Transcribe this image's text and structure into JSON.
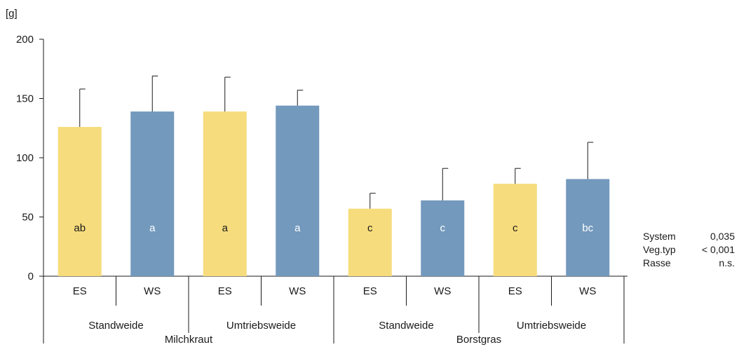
{
  "chart_data": {
    "type": "bar",
    "ylabel": "[g]",
    "ylim": [
      0,
      200
    ],
    "yticks": [
      0,
      50,
      100,
      150,
      200
    ],
    "colors": {
      "ES": "#f6dc7c",
      "WS": "#7399bd",
      "axis": "#1a1a1a"
    },
    "bars": [
      {
        "cat": "ES",
        "system": "Standweide",
        "vegtyp": "Milchkraut",
        "value": 126,
        "err_upper": 158,
        "sig": "ab",
        "sig_color": "#1a1a1a"
      },
      {
        "cat": "WS",
        "system": "Standweide",
        "vegtyp": "Milchkraut",
        "value": 139,
        "err_upper": 169,
        "sig": "a",
        "sig_color": "#ffffff"
      },
      {
        "cat": "ES",
        "system": "Umtriebsweide",
        "vegtyp": "Milchkraut",
        "value": 139,
        "err_upper": 168,
        "sig": "a",
        "sig_color": "#1a1a1a"
      },
      {
        "cat": "WS",
        "system": "Umtriebsweide",
        "vegtyp": "Milchkraut",
        "value": 144,
        "err_upper": 157,
        "sig": "a",
        "sig_color": "#ffffff"
      },
      {
        "cat": "ES",
        "system": "Standweide",
        "vegtyp": "Borstgras",
        "value": 57,
        "err_upper": 70,
        "sig": "c",
        "sig_color": "#1a1a1a"
      },
      {
        "cat": "WS",
        "system": "Standweide",
        "vegtyp": "Borstgras",
        "value": 64,
        "err_upper": 91,
        "sig": "c",
        "sig_color": "#ffffff"
      },
      {
        "cat": "ES",
        "system": "Umtriebsweide",
        "vegtyp": "Borstgras",
        "value": 78,
        "err_upper": 91,
        "sig": "c",
        "sig_color": "#1a1a1a"
      },
      {
        "cat": "WS",
        "system": "Umtriebsweide",
        "vegtyp": "Borstgras",
        "value": 82,
        "err_upper": 113,
        "sig": "bc",
        "sig_color": "#ffffff"
      }
    ],
    "system_groups": [
      "Standweide",
      "Umtriebsweide",
      "Standweide",
      "Umtriebsweide"
    ],
    "vegtyp_groups": [
      "Milchkraut",
      "Borstgras"
    ],
    "stats": [
      {
        "label": "System",
        "value": "0,035"
      },
      {
        "label": "Veg.typ",
        "value": "< 0,001"
      },
      {
        "label": "Rasse",
        "value": "n.s."
      }
    ]
  }
}
